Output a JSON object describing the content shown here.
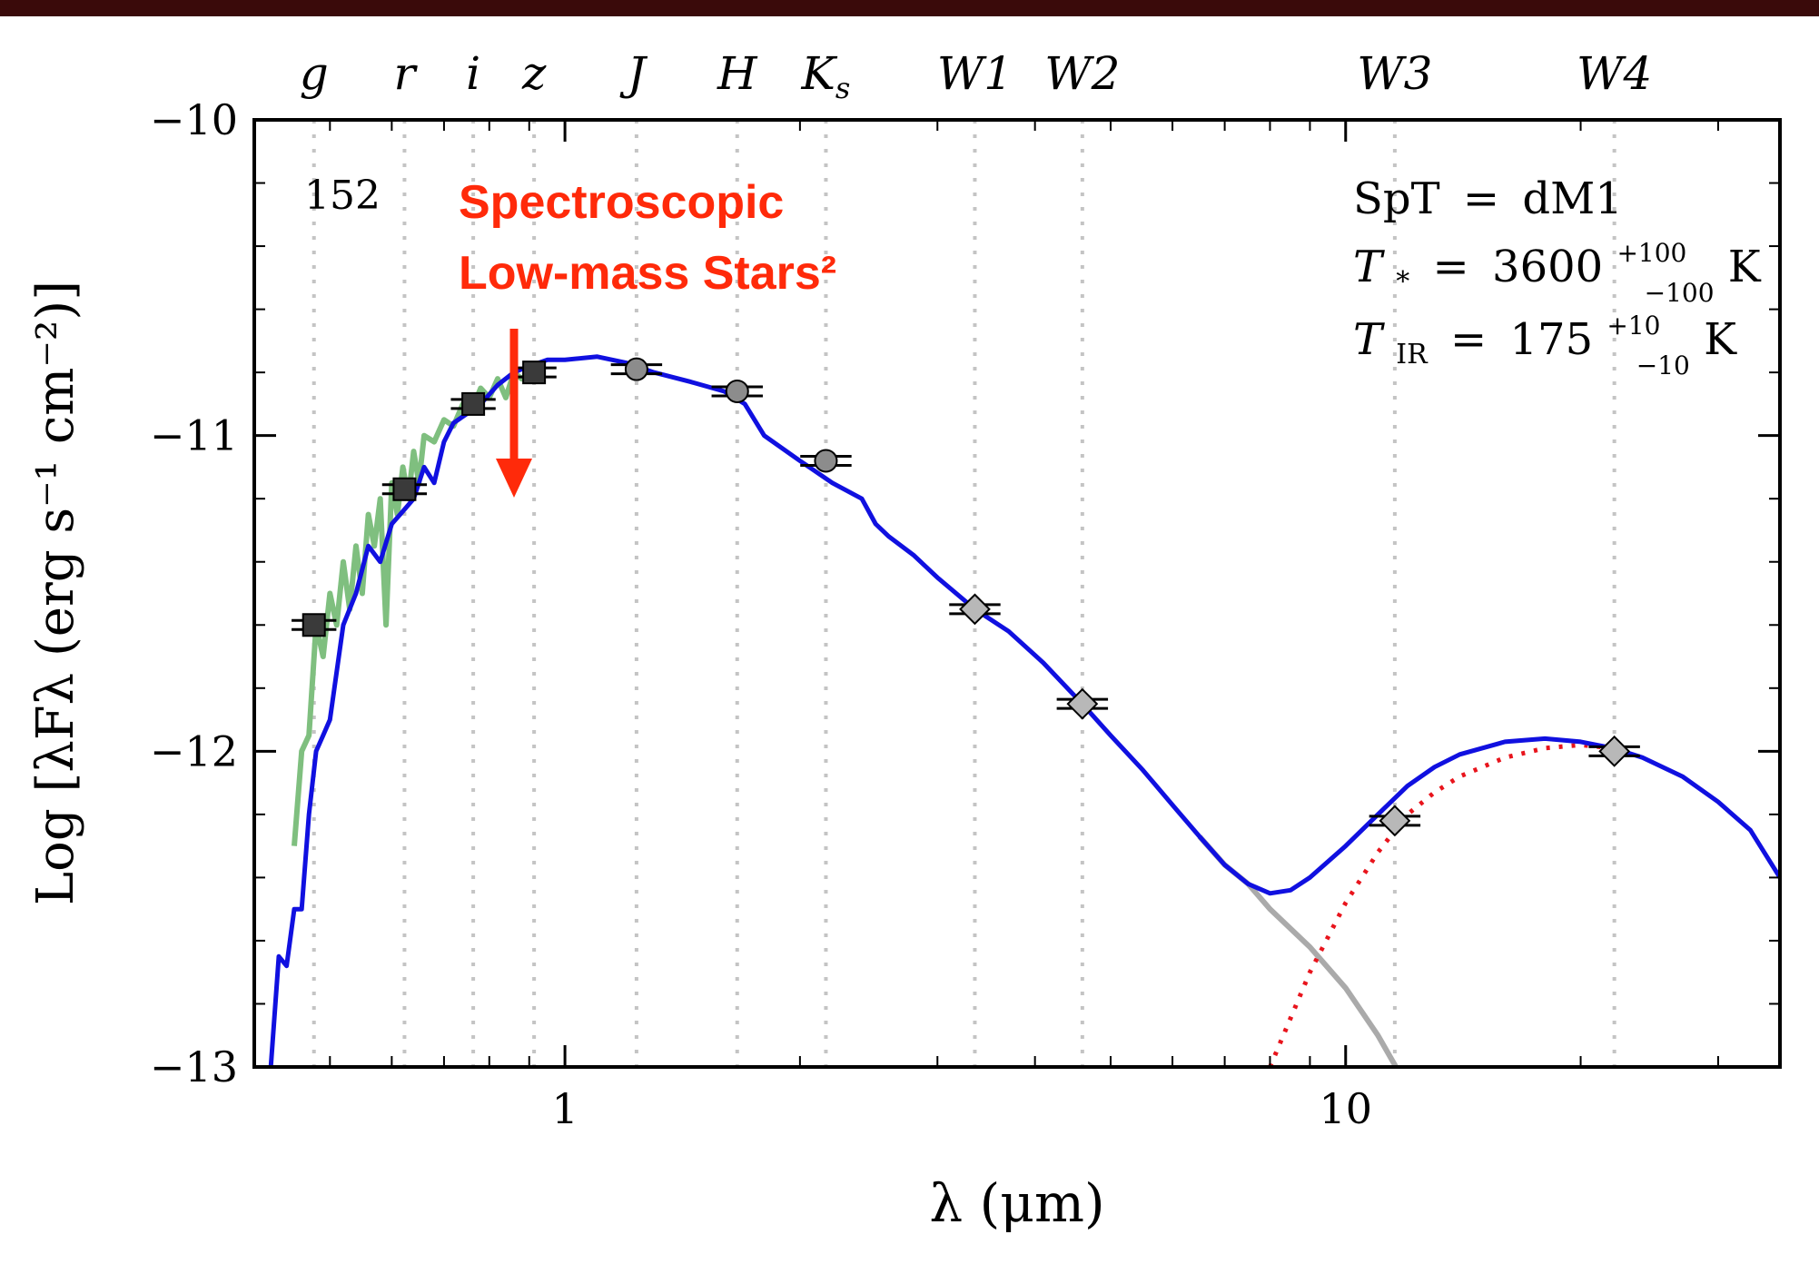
{
  "figure": {
    "panel_id": "152",
    "annotation": {
      "line1": "Spectroscopic",
      "line2": "Low-mass Stars²",
      "color": "#ff2a0a"
    },
    "params": {
      "spt_label": "SpT",
      "spt_value": "dM1",
      "tstar_label": "T",
      "tstar_sub": "*",
      "tstar_value": "3600",
      "tstar_err_plus": "+100",
      "tstar_err_minus": "−100",
      "tir_label": "T",
      "tir_sub": "IR",
      "tir_value": "175",
      "tir_err_plus": "+10",
      "tir_err_minus": "−10",
      "unit": "K",
      "equals": "="
    },
    "colors": {
      "model": "#1010e0",
      "spectrum": "#7fbf7f",
      "photosphere": "#aaaaaa",
      "dust": "#e8141c",
      "square_marker": "#3a3a3a",
      "circle_marker": "#8c8c8c",
      "diamond_marker": "#b8b8b8",
      "band_line": "#c4c4c4",
      "background_band": "#3a0a0a"
    }
  },
  "chart_data": {
    "type": "line",
    "title": "",
    "xlabel": "λ (μm)",
    "ylabel": "Log [λFλ (erg s⁻¹ cm⁻²)]",
    "xscale": "log",
    "xlim": [
      0.4,
      36
    ],
    "ylim": [
      -13,
      -10
    ],
    "yticks": [
      -10,
      -11,
      -12,
      -13
    ],
    "ytick_labels": [
      "−10",
      "−11",
      "−12",
      "−13"
    ],
    "xticks": [
      1,
      10
    ],
    "xtick_labels": [
      "1",
      "10"
    ],
    "grid": false,
    "bands": [
      {
        "name": "g",
        "x": 0.477
      },
      {
        "name": "r",
        "x": 0.623
      },
      {
        "name": "i",
        "x": 0.763
      },
      {
        "name": "z",
        "x": 0.913
      },
      {
        "name": "J",
        "x": 1.235
      },
      {
        "name": "H",
        "x": 1.662
      },
      {
        "name": "K",
        "sub": "s",
        "x": 2.159
      },
      {
        "name": "W1",
        "x": 3.35
      },
      {
        "name": "W2",
        "x": 4.6
      },
      {
        "name": "W3",
        "x": 11.56
      },
      {
        "name": "W4",
        "x": 22.09
      }
    ],
    "series": [
      {
        "kind": "photometry-square",
        "x": [
          0.477,
          0.623,
          0.763,
          0.913
        ],
        "y": [
          -11.6,
          -11.17,
          -10.9,
          -10.8
        ],
        "xerr": [
          0.04,
          0.04,
          0.04,
          0.04
        ]
      },
      {
        "kind": "photometry-circle",
        "x": [
          1.235,
          1.662,
          2.159
        ],
        "y": [
          -10.79,
          -10.86,
          -11.08
        ],
        "xerr": [
          0.05,
          0.05,
          0.05
        ]
      },
      {
        "kind": "photometry-diamond",
        "x": [
          3.35,
          4.6,
          11.56,
          22.09
        ],
        "y": [
          -11.55,
          -11.85,
          -12.22,
          -12.0
        ],
        "xerr": [
          0.05,
          0.05,
          0.05,
          0.05
        ]
      },
      {
        "kind": "model-total",
        "x": [
          0.42,
          0.43,
          0.44,
          0.45,
          0.46,
          0.47,
          0.48,
          0.49,
          0.5,
          0.52,
          0.54,
          0.56,
          0.58,
          0.6,
          0.62,
          0.64,
          0.66,
          0.68,
          0.7,
          0.72,
          0.75,
          0.78,
          0.82,
          0.86,
          0.9,
          0.95,
          1.0,
          1.1,
          1.2,
          1.3,
          1.45,
          1.6,
          1.7,
          1.8,
          2.0,
          2.2,
          2.4,
          2.5,
          2.6,
          2.8,
          3.0,
          3.35,
          3.7,
          4.1,
          4.6,
          5.0,
          5.5,
          6.0,
          6.5,
          7.0,
          7.5,
          8.0,
          8.5,
          9.0,
          10.0,
          11.0,
          12.0,
          13.0,
          14.0,
          16.0,
          18.0,
          20.0,
          22.0,
          24.0,
          27.0,
          30.0,
          33.0,
          36.0
        ],
        "y": [
          -13.0,
          -12.65,
          -12.68,
          -12.5,
          -12.5,
          -12.2,
          -12.0,
          -11.95,
          -11.9,
          -11.6,
          -11.5,
          -11.35,
          -11.4,
          -11.28,
          -11.24,
          -11.2,
          -11.1,
          -11.15,
          -11.02,
          -10.96,
          -10.93,
          -10.9,
          -10.84,
          -10.8,
          -10.78,
          -10.76,
          -10.76,
          -10.75,
          -10.77,
          -10.8,
          -10.83,
          -10.86,
          -10.9,
          -11.0,
          -11.08,
          -11.15,
          -11.2,
          -11.28,
          -11.32,
          -11.38,
          -11.45,
          -11.55,
          -11.62,
          -11.72,
          -11.85,
          -11.95,
          -12.06,
          -12.17,
          -12.27,
          -12.36,
          -12.42,
          -12.45,
          -12.44,
          -12.4,
          -12.3,
          -12.2,
          -12.11,
          -12.05,
          -12.01,
          -11.97,
          -11.96,
          -11.97,
          -11.99,
          -12.02,
          -12.08,
          -12.16,
          -12.25,
          -12.4
        ]
      },
      {
        "kind": "photosphere",
        "x": [
          6.5,
          7.0,
          7.5,
          8.0,
          9.0,
          10.0,
          11.0,
          11.6
        ],
        "y": [
          -12.27,
          -12.36,
          -12.42,
          -12.5,
          -12.62,
          -12.75,
          -12.9,
          -13.0
        ]
      },
      {
        "kind": "dust-blackbody",
        "x": [
          8.0,
          9.0,
          10.0,
          11.0,
          12.0,
          13.0,
          14.0,
          16.0,
          18.0,
          20.0,
          22.0
        ],
        "y": [
          -13.0,
          -12.7,
          -12.48,
          -12.32,
          -12.2,
          -12.13,
          -12.08,
          -12.02,
          -11.99,
          -11.98,
          -11.99
        ]
      },
      {
        "kind": "spectrum",
        "x": [
          0.45,
          0.46,
          0.47,
          0.48,
          0.49,
          0.5,
          0.51,
          0.52,
          0.53,
          0.54,
          0.55,
          0.56,
          0.57,
          0.58,
          0.59,
          0.6,
          0.61,
          0.62,
          0.63,
          0.64,
          0.65,
          0.66,
          0.68,
          0.7,
          0.72,
          0.74,
          0.76,
          0.78,
          0.8,
          0.82,
          0.84,
          0.86,
          0.88,
          0.9
        ],
        "y": [
          -12.3,
          -12.0,
          -11.95,
          -11.6,
          -11.7,
          -11.5,
          -11.6,
          -11.4,
          -11.55,
          -11.35,
          -11.5,
          -11.25,
          -11.35,
          -11.2,
          -11.6,
          -11.15,
          -11.25,
          -11.1,
          -11.2,
          -11.05,
          -11.15,
          -11.0,
          -11.02,
          -10.95,
          -10.97,
          -10.9,
          -10.92,
          -10.85,
          -10.88,
          -10.82,
          -10.88,
          -10.8,
          -10.82,
          -10.8
        ]
      }
    ]
  }
}
